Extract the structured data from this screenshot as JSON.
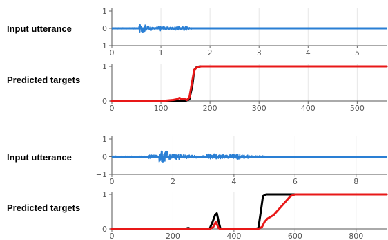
{
  "chart_data": [
    {
      "type": "line",
      "title": "",
      "row_label": "Input utterance",
      "xlabel": "",
      "ylabel": "",
      "xlim": [
        0,
        5.6
      ],
      "ylim": [
        -1,
        1
      ],
      "x_ticks": [
        0,
        1,
        2,
        3,
        4,
        5
      ],
      "y_ticks": [
        -1,
        0,
        1
      ],
      "grid": "vertical",
      "series": [
        {
          "color": "#2a7fd4",
          "kind": "waveform",
          "segments": [
            {
              "start": 0.0,
              "end": 0.55,
              "amp": 0.04
            },
            {
              "start": 0.55,
              "end": 0.68,
              "amp": 0.22
            },
            {
              "start": 0.68,
              "end": 0.82,
              "amp": 0.12
            },
            {
              "start": 0.82,
              "end": 0.92,
              "amp": 0.06
            },
            {
              "start": 0.92,
              "end": 1.05,
              "amp": 0.15
            },
            {
              "start": 1.05,
              "end": 1.25,
              "amp": 0.09
            },
            {
              "start": 1.25,
              "end": 1.45,
              "amp": 0.11
            },
            {
              "start": 1.45,
              "end": 1.55,
              "amp": 0.13
            },
            {
              "start": 1.55,
              "end": 1.65,
              "amp": 0.06
            },
            {
              "start": 1.65,
              "end": 5.6,
              "amp": 0.025
            }
          ]
        }
      ]
    },
    {
      "type": "line",
      "title": "",
      "row_label": "Predicted targets",
      "xlabel": "",
      "ylabel": "",
      "xlim": [
        0,
        560
      ],
      "ylim": [
        0,
        1
      ],
      "x_ticks": [
        0,
        100,
        200,
        300,
        400,
        500
      ],
      "y_ticks": [
        0,
        1
      ],
      "grid": "vertical",
      "series": [
        {
          "color": "#000000",
          "x": [
            0,
            150,
            158,
            164,
            168,
            173,
            180,
            190,
            560
          ],
          "y": [
            0,
            0,
            0.05,
            0.45,
            0.9,
            0.98,
            1,
            1,
            1
          ]
        },
        {
          "color": "#e81818",
          "x": [
            0,
            110,
            125,
            132,
            138,
            142,
            148,
            153,
            158,
            163,
            168,
            174,
            182,
            560
          ],
          "y": [
            0,
            0.01,
            0.03,
            0.05,
            0.09,
            0.05,
            0.06,
            0.03,
            0.1,
            0.5,
            0.9,
            0.98,
            1,
            1
          ]
        }
      ]
    },
    {
      "type": "line",
      "title": "",
      "row_label": "Input utterance",
      "xlabel": "",
      "ylabel": "",
      "xlim": [
        0,
        9
      ],
      "ylim": [
        -1,
        1
      ],
      "x_ticks": [
        0,
        2,
        4,
        6,
        8
      ],
      "y_ticks": [
        -1,
        0,
        1
      ],
      "grid": "vertical",
      "series": [
        {
          "color": "#2a7fd4",
          "kind": "waveform",
          "segments": [
            {
              "start": 0.0,
              "end": 1.2,
              "amp": 0.04
            },
            {
              "start": 1.2,
              "end": 1.55,
              "amp": 0.1
            },
            {
              "start": 1.55,
              "end": 1.85,
              "amp": 0.32
            },
            {
              "start": 1.85,
              "end": 2.2,
              "amp": 0.16
            },
            {
              "start": 2.2,
              "end": 2.45,
              "amp": 0.12
            },
            {
              "start": 2.45,
              "end": 2.8,
              "amp": 0.09
            },
            {
              "start": 2.8,
              "end": 3.1,
              "amp": 0.06
            },
            {
              "start": 3.1,
              "end": 3.45,
              "amp": 0.16
            },
            {
              "start": 3.45,
              "end": 3.85,
              "amp": 0.13
            },
            {
              "start": 3.85,
              "end": 4.2,
              "amp": 0.15
            },
            {
              "start": 4.2,
              "end": 4.6,
              "amp": 0.1
            },
            {
              "start": 4.6,
              "end": 5.0,
              "amp": 0.06
            },
            {
              "start": 5.0,
              "end": 9.0,
              "amp": 0.025
            }
          ]
        }
      ]
    },
    {
      "type": "line",
      "title": "",
      "row_label": "Predicted targets",
      "xlabel": "",
      "ylabel": "",
      "xlim": [
        0,
        900
      ],
      "ylim": [
        0,
        1
      ],
      "x_ticks": [
        0,
        200,
        400,
        600,
        800
      ],
      "y_ticks": [
        0,
        1
      ],
      "grid": "vertical",
      "series": [
        {
          "color": "#000000",
          "x": [
            0,
            240,
            250,
            258,
            320,
            330,
            338,
            344,
            350,
            356,
            470,
            480,
            488,
            495,
            505,
            520,
            900
          ],
          "y": [
            0,
            0,
            0.03,
            0,
            0,
            0.2,
            0.4,
            0.45,
            0.2,
            0,
            0,
            0.03,
            0.5,
            0.95,
            1,
            1,
            1
          ]
        },
        {
          "color": "#e81818",
          "x": [
            0,
            320,
            332,
            340,
            346,
            350,
            355,
            480,
            492,
            500,
            510,
            530,
            550,
            570,
            585,
            600,
            900
          ],
          "y": [
            0,
            0,
            0.05,
            0.2,
            0.1,
            0.02,
            0,
            0,
            0.06,
            0.2,
            0.3,
            0.4,
            0.6,
            0.8,
            0.95,
            1,
            1
          ]
        }
      ]
    }
  ]
}
